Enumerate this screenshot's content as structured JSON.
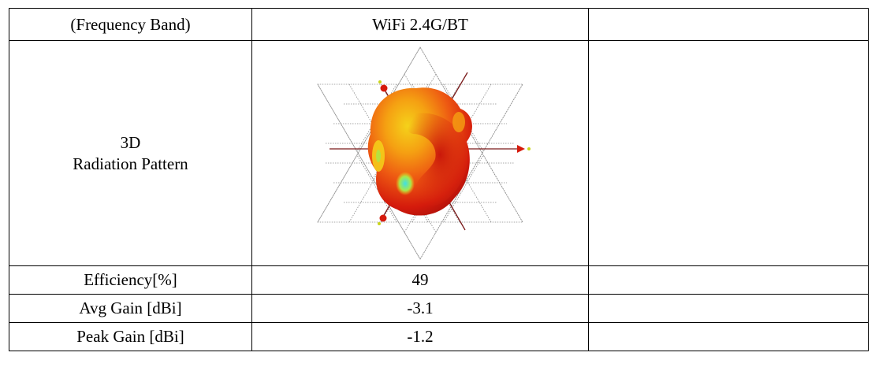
{
  "table": {
    "header": {
      "label": "(Frequency Band)",
      "band": "WiFi 2.4G/BT",
      "extra": ""
    },
    "pattern_row": {
      "label_line1": "3D",
      "label_line2": "Radiation Pattern",
      "image_icon": "3d-radiation-pattern-plot",
      "extra": ""
    },
    "rows": [
      {
        "label": "Efficiency[%]",
        "value": "49",
        "extra": ""
      },
      {
        "label": "Avg Gain [dBi]",
        "value": "-3.1",
        "extra": ""
      },
      {
        "label": "Peak Gain [dBi]",
        "value": "-1.2",
        "extra": ""
      }
    ]
  },
  "colors": {
    "border": "#000000",
    "pattern_red": "#d61a0c",
    "pattern_orange": "#f07a10",
    "pattern_yellow": "#f5d21a",
    "pattern_cyan": "#3fe0e6",
    "grid": "#888888",
    "axis": "#7a1a1a"
  }
}
